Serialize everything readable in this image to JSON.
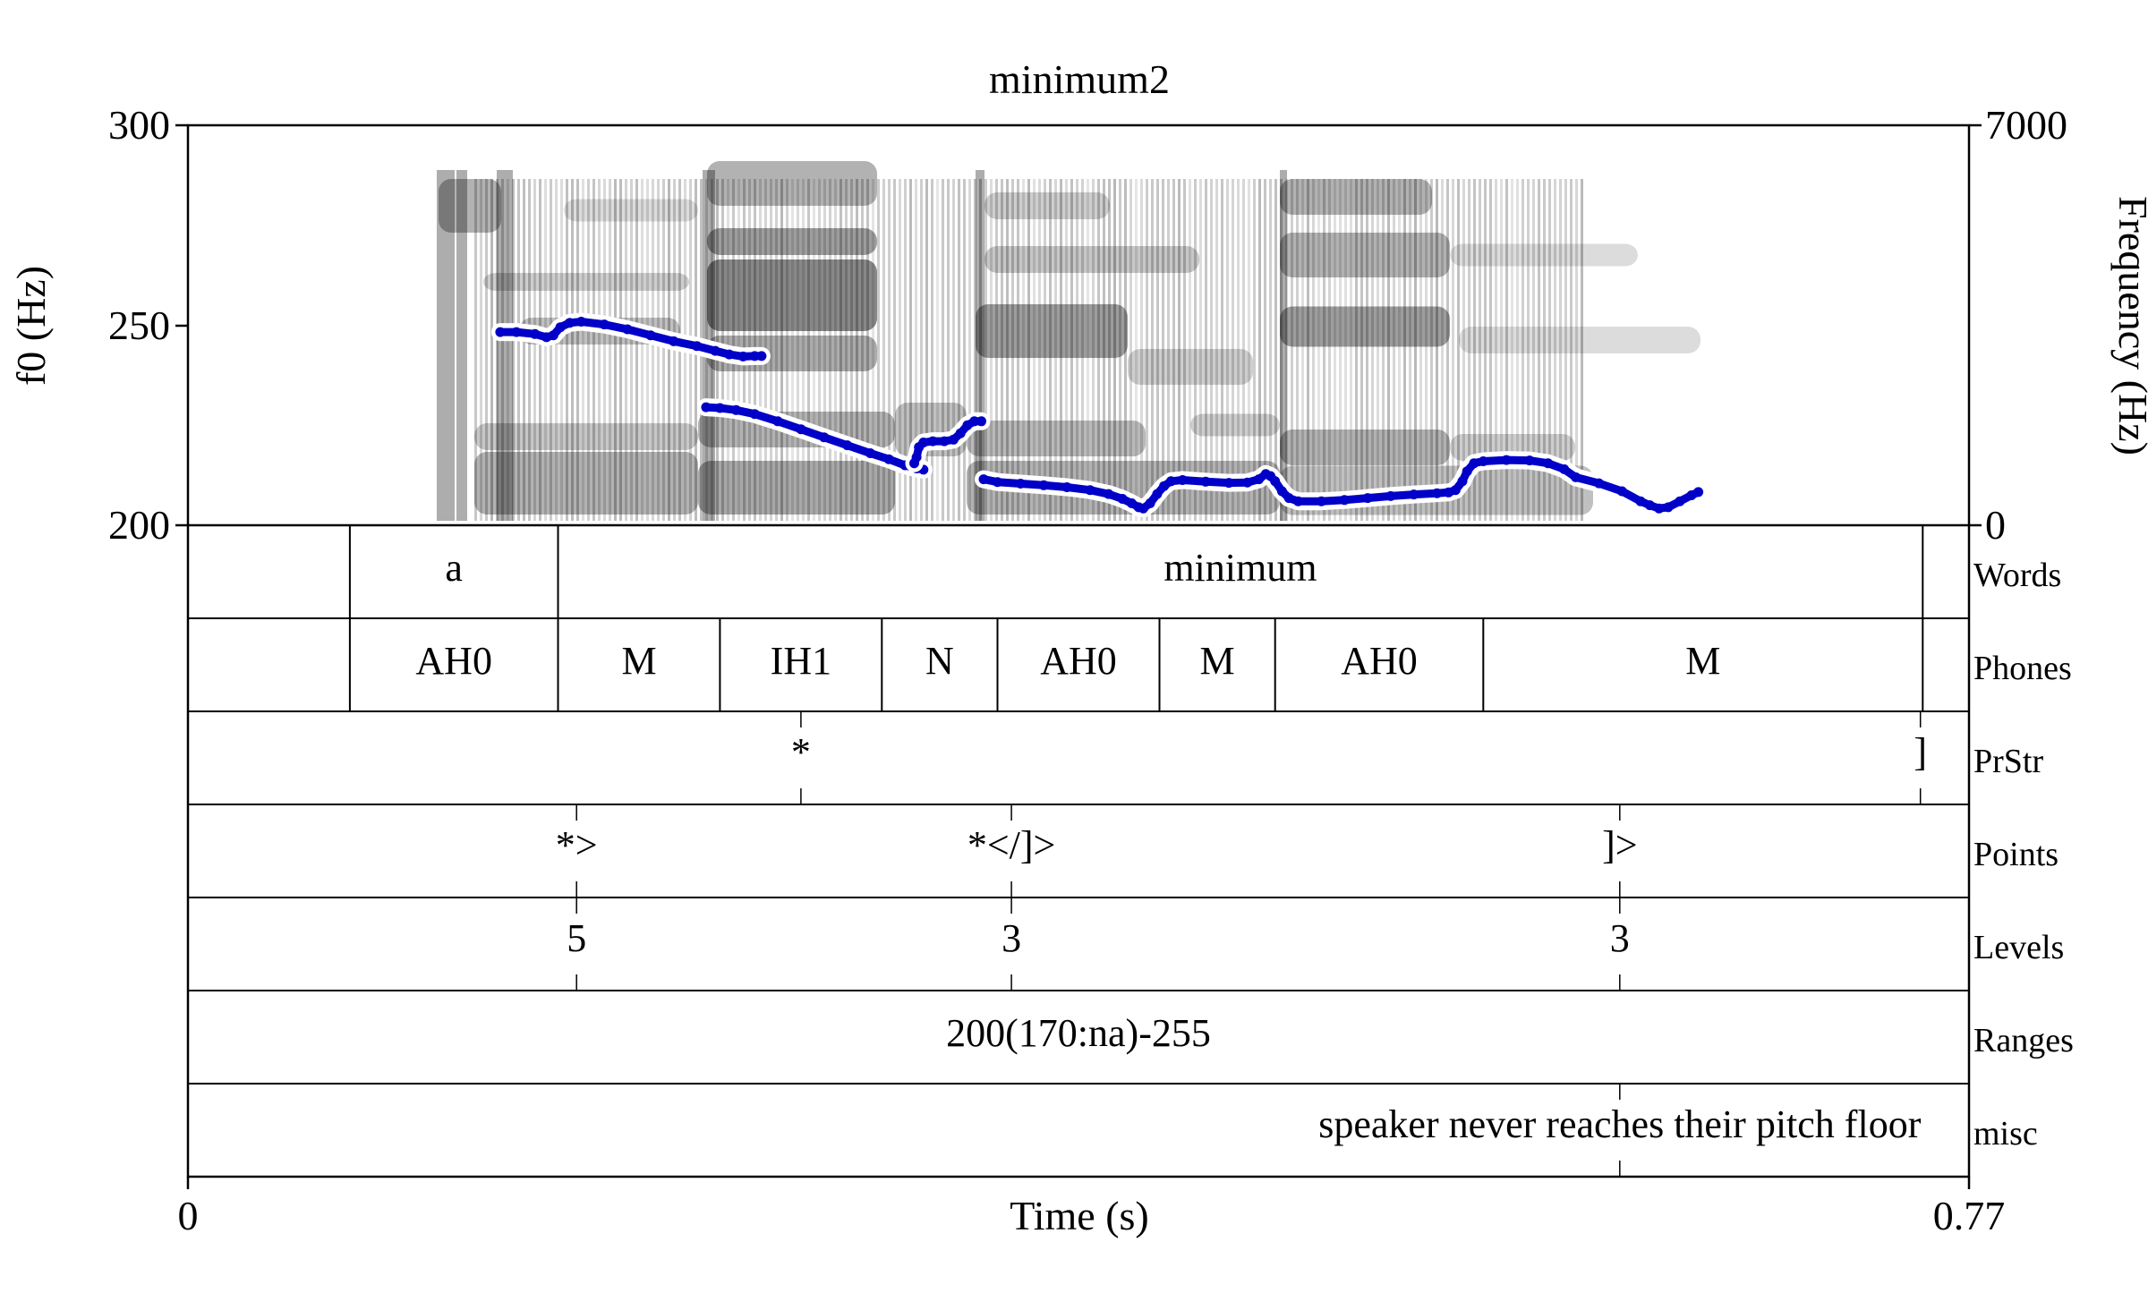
{
  "chart_data": {
    "type": "line",
    "title": "minimum2",
    "xlabel": "Time (s)",
    "ylabel": "f0 (Hz)",
    "ylabel_right": "Frequency (Hz)",
    "xlim": [
      0,
      0.77
    ],
    "ylim": [
      200,
      300
    ],
    "ylim_right": [
      0,
      7000
    ],
    "x_ticks": [
      "0",
      "0.77"
    ],
    "y_ticks": [
      "300",
      "250",
      "200"
    ],
    "y_ticks_right": [
      "7000",
      "0"
    ],
    "colors": {
      "f0": "#0000c8",
      "halo": "#ffffff",
      "spectrogram": "#000000"
    },
    "series": [
      {
        "values": [
          [
            [
              0.135,
              248.3
            ],
            [
              0.142,
              248.3
            ],
            [
              0.15,
              247.8
            ],
            [
              0.155,
              247.0
            ],
            [
              0.158,
              247.5
            ],
            [
              0.161,
              249.5
            ],
            [
              0.165,
              250.6
            ],
            [
              0.17,
              250.9
            ],
            [
              0.18,
              250.2
            ],
            [
              0.19,
              249.0
            ],
            [
              0.2,
              247.5
            ],
            [
              0.21,
              246.0
            ],
            [
              0.22,
              244.8
            ],
            [
              0.228,
              243.6
            ],
            [
              0.234,
              242.7
            ],
            [
              0.24,
              242.2
            ],
            [
              0.245,
              242.3
            ],
            [
              0.248,
              242.3
            ]
          ],
          [
            [
              0.224,
              229.5
            ],
            [
              0.23,
              229.3
            ],
            [
              0.237,
              228.8
            ],
            [
              0.245,
              227.8
            ],
            [
              0.255,
              226.0
            ],
            [
              0.265,
              224.0
            ],
            [
              0.275,
              222.0
            ],
            [
              0.285,
              220.0
            ],
            [
              0.295,
              218.0
            ],
            [
              0.303,
              216.5
            ],
            [
              0.31,
              215.0
            ],
            [
              0.315,
              214.2
            ],
            [
              0.318,
              213.9
            ]
          ],
          [
            [
              0.314,
              215.5
            ],
            [
              0.315,
              217.0
            ],
            [
              0.316,
              219.5
            ],
            [
              0.318,
              220.7
            ],
            [
              0.322,
              221.0
            ],
            [
              0.327,
              221.0
            ],
            [
              0.331,
              221.4
            ],
            [
              0.334,
              223.0
            ],
            [
              0.337,
              225.0
            ],
            [
              0.34,
              226.0
            ],
            [
              0.343,
              226.0
            ]
          ],
          [
            [
              0.344,
              211.5
            ],
            [
              0.35,
              210.8
            ],
            [
              0.36,
              210.4
            ],
            [
              0.37,
              210.0
            ],
            [
              0.38,
              209.5
            ],
            [
              0.39,
              208.8
            ],
            [
              0.398,
              207.8
            ],
            [
              0.404,
              206.6
            ],
            [
              0.408,
              205.5
            ],
            [
              0.411,
              204.5
            ],
            [
              0.413,
              204.2
            ],
            [
              0.416,
              205.5
            ],
            [
              0.419,
              207.8
            ],
            [
              0.422,
              209.8
            ],
            [
              0.425,
              211.0
            ],
            [
              0.43,
              211.3
            ],
            [
              0.44,
              210.9
            ],
            [
              0.45,
              210.6
            ],
            [
              0.458,
              210.7
            ],
            [
              0.463,
              211.5
            ],
            [
              0.466,
              212.8
            ],
            [
              0.468,
              212.3
            ],
            [
              0.47,
              211.0
            ],
            [
              0.473,
              208.5
            ],
            [
              0.476,
              206.8
            ],
            [
              0.48,
              206.0
            ],
            [
              0.49,
              206.0
            ],
            [
              0.5,
              206.3
            ],
            [
              0.51,
              206.8
            ],
            [
              0.52,
              207.3
            ],
            [
              0.53,
              207.7
            ],
            [
              0.54,
              208.0
            ],
            [
              0.545,
              208.2
            ],
            [
              0.548,
              208.8
            ],
            [
              0.551,
              211.0
            ],
            [
              0.553,
              213.5
            ],
            [
              0.556,
              215.5
            ],
            [
              0.56,
              216.0
            ],
            [
              0.57,
              216.3
            ],
            [
              0.58,
              216.2
            ],
            [
              0.588,
              215.5
            ],
            [
              0.595,
              214.0
            ],
            [
              0.6,
              212.0
            ],
            [
              0.61,
              210.5
            ],
            [
              0.62,
              208.5
            ],
            [
              0.628,
              206.0
            ],
            [
              0.632,
              205.0
            ],
            [
              0.636,
              204.2
            ],
            [
              0.64,
              204.5
            ],
            [
              0.645,
              206.0
            ],
            [
              0.65,
              207.5
            ],
            [
              0.653,
              208.3
            ]
          ]
        ]
      }
    ],
    "tiers": [
      {
        "name": "Words",
        "type": "interval",
        "intervals": [
          {
            "start": 0.07,
            "end": 0.16,
            "label": "a"
          },
          {
            "start": 0.16,
            "end": 0.75,
            "label": "minimum"
          }
        ]
      },
      {
        "name": "Phones",
        "type": "interval",
        "intervals": [
          {
            "start": 0.07,
            "end": 0.16,
            "label": "AH0"
          },
          {
            "start": 0.16,
            "end": 0.23,
            "label": "M"
          },
          {
            "start": 0.23,
            "end": 0.3,
            "label": "IH1"
          },
          {
            "start": 0.3,
            "end": 0.35,
            "label": "N"
          },
          {
            "start": 0.35,
            "end": 0.42,
            "label": "AH0"
          },
          {
            "start": 0.42,
            "end": 0.47,
            "label": "M"
          },
          {
            "start": 0.47,
            "end": 0.56,
            "label": "AH0"
          },
          {
            "start": 0.56,
            "end": 0.75,
            "label": "M"
          }
        ]
      },
      {
        "name": "PrStr",
        "type": "point",
        "points": [
          {
            "time": 0.265,
            "label": "*"
          },
          {
            "time": 0.749,
            "label": "]"
          }
        ]
      },
      {
        "name": "Points",
        "type": "point",
        "points": [
          {
            "time": 0.168,
            "label": "*>"
          },
          {
            "time": 0.356,
            "label": "*</]>"
          },
          {
            "time": 0.619,
            "label": "]>"
          }
        ]
      },
      {
        "name": "Levels",
        "type": "point",
        "points": [
          {
            "time": 0.168,
            "label": "5"
          },
          {
            "time": 0.356,
            "label": "3"
          },
          {
            "time": 0.619,
            "label": "3"
          }
        ]
      },
      {
        "name": "Ranges",
        "type": "interval",
        "intervals": [
          {
            "start": 0.0,
            "end": 0.77,
            "label": "200(170:na)-255"
          }
        ]
      },
      {
        "name": "misc",
        "type": "point",
        "points": [
          {
            "time": 0.619,
            "label": "speaker never reaches their pitch floor"
          }
        ]
      }
    ]
  }
}
